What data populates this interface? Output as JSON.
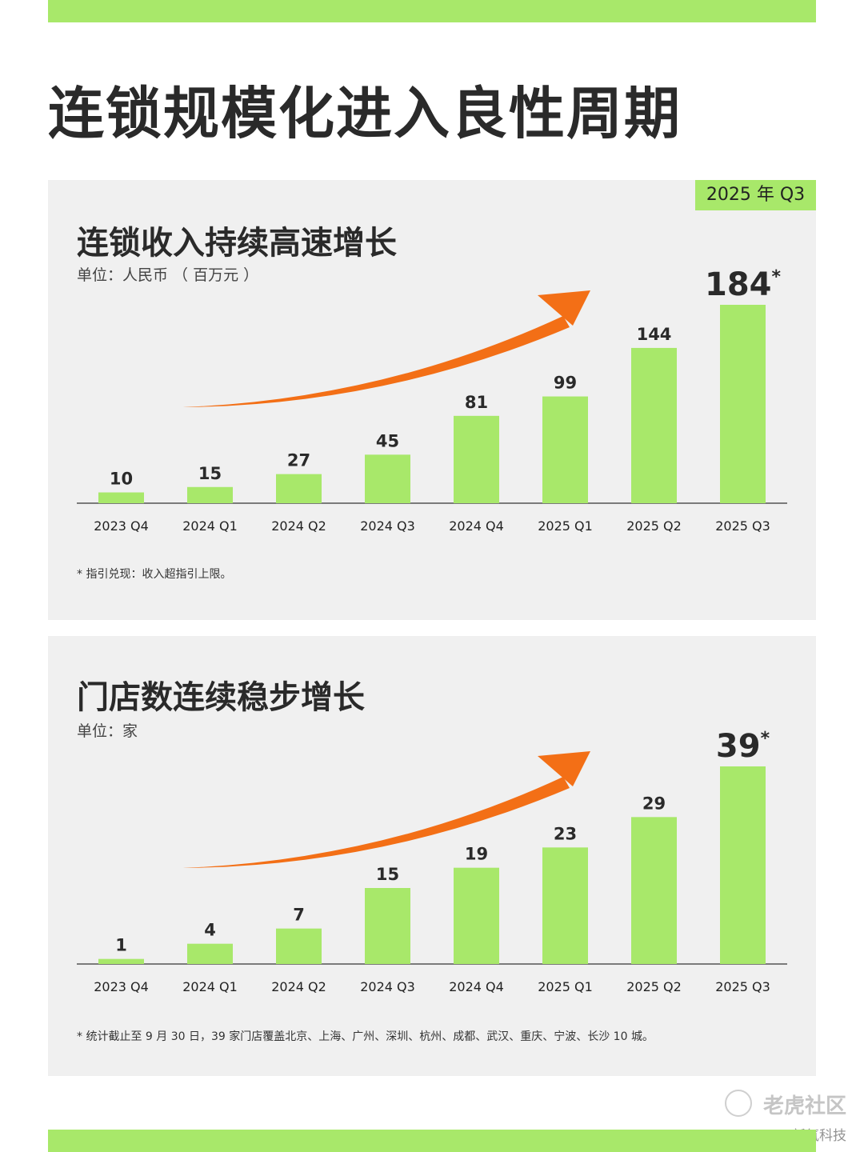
{
  "colors": {
    "accent": "#a8e86a",
    "arrow": "#f36f16",
    "panel": "#f0f0f0",
    "text": "#2a2a2a"
  },
  "page": {
    "title": "连锁规模化进入良性周期"
  },
  "period_tag": "2025 年 Q3",
  "watermark": {
    "community": "老虎社区",
    "source": "@新氧科技"
  },
  "chart_data": [
    {
      "type": "bar",
      "title": "连锁收入持续高速增长",
      "unit_label": "单位：人民币 （ 百万元 ）",
      "categories": [
        "2023 Q4",
        "2024 Q1",
        "2024 Q2",
        "2024 Q3",
        "2024 Q4",
        "2025 Q1",
        "2025 Q2",
        "2025 Q3"
      ],
      "values": [
        10,
        15,
        27,
        45,
        81,
        99,
        144,
        184
      ],
      "value_labels": [
        "10",
        "15",
        "27",
        "45",
        "81",
        "99",
        "144",
        "184"
      ],
      "highlight_last": true,
      "last_mark": "*",
      "trend_arrow": true,
      "ylim": [
        0,
        184
      ],
      "grid": false,
      "footnote": "* 指引兑现：收入超指引上限。"
    },
    {
      "type": "bar",
      "title": "门店数连续稳步增长",
      "unit_label": "单位：家",
      "categories": [
        "2023 Q4",
        "2024 Q1",
        "2024 Q2",
        "2024 Q3",
        "2024 Q4",
        "2025 Q1",
        "2025 Q2",
        "2025 Q3"
      ],
      "values": [
        1,
        4,
        7,
        15,
        19,
        23,
        29,
        39
      ],
      "value_labels": [
        "1",
        "4",
        "7",
        "15",
        "19",
        "23",
        "29",
        "39"
      ],
      "highlight_last": true,
      "last_mark": "*",
      "trend_arrow": true,
      "ylim": [
        0,
        39
      ],
      "grid": false,
      "footnote": "* 统计截止至 9 月 30 日，39 家门店覆盖北京、上海、广州、深圳、杭州、成都、武汉、重庆、宁波、长沙 10 城。"
    }
  ]
}
